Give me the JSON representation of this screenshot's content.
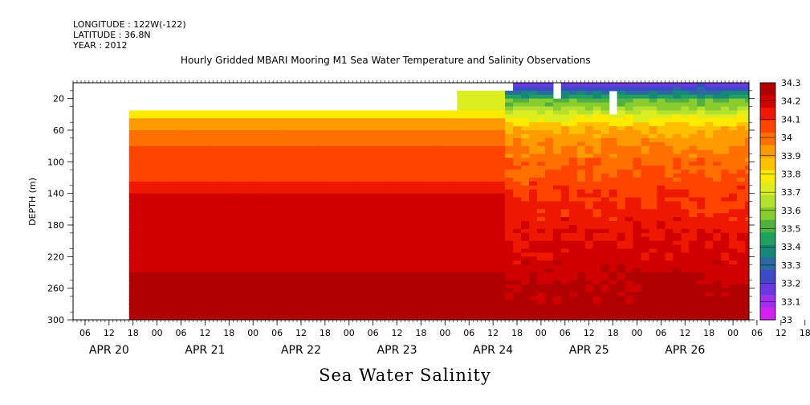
{
  "header": {
    "longitude": "LONGITUDE : 122W(-122)",
    "latitude": "LATITUDE : 36.8N",
    "year": "YEAR : 2012"
  },
  "chart_data": {
    "type": "heatmap",
    "title": "Hourly Gridded MBARI Mooring M1 Sea Water Temperature and Salinity Observations",
    "xlabel": "Sea Water Salinity",
    "ylabel": "DEPTH (m)",
    "x_tick_labels": [
      "06",
      "12",
      "18",
      "00",
      "06",
      "12",
      "18",
      "00",
      "06",
      "12",
      "18",
      "00",
      "06",
      "12",
      "18",
      "00",
      "06",
      "12",
      "18",
      "00",
      "06",
      "12",
      "18",
      "00",
      "06",
      "12",
      "18",
      "00",
      "06",
      "12",
      "18",
      "00"
    ],
    "date_labels": [
      "APR 20",
      "APR 21",
      "APR 22",
      "APR 23",
      "APR 24",
      "APR 25",
      "APR 26"
    ],
    "x_range_hours_from_apr20_00": [
      3,
      172
    ],
    "y_ticks": [
      20,
      60,
      100,
      140,
      180,
      220,
      260,
      300
    ],
    "ylim": [
      300,
      0
    ],
    "colorbar": {
      "levels": [
        34.3,
        34.2,
        34.1,
        34,
        33.9,
        33.8,
        33.7,
        33.6,
        33.5,
        33.4,
        33.3,
        33.2,
        33.1,
        33
      ],
      "colors": [
        "#b00000",
        "#d00000",
        "#ee1800",
        "#ff4400",
        "#ff7000",
        "#ff9a00",
        "#ffc000",
        "#ffea00",
        "#dcee20",
        "#b4e030",
        "#88cc30",
        "#50b040",
        "#20a060",
        "#178878",
        "#2a6aa0",
        "#3c4ac8",
        "#6a38e0",
        "#a030f0",
        "#d022f0"
      ]
    },
    "salinity_profile_stable_period": [
      {
        "depth_range": [
          35,
          45
        ],
        "salinity": 33.82
      },
      {
        "depth_range": [
          45,
          62
        ],
        "salinity": 33.9
      },
      {
        "depth_range": [
          62,
          80
        ],
        "salinity": 33.97
      },
      {
        "depth_range": [
          80,
          105
        ],
        "salinity": 34.03
      },
      {
        "depth_range": [
          105,
          125
        ],
        "salinity": 34.08
      },
      {
        "depth_range": [
          125,
          142
        ],
        "salinity": 34.13
      },
      {
        "depth_range": [
          142,
          220
        ],
        "salinity": 34.18
      },
      {
        "depth_range": [
          220,
          242
        ],
        "salinity": 34.22
      },
      {
        "depth_range": [
          242,
          300
        ],
        "salinity": 34.27
      }
    ]
  }
}
